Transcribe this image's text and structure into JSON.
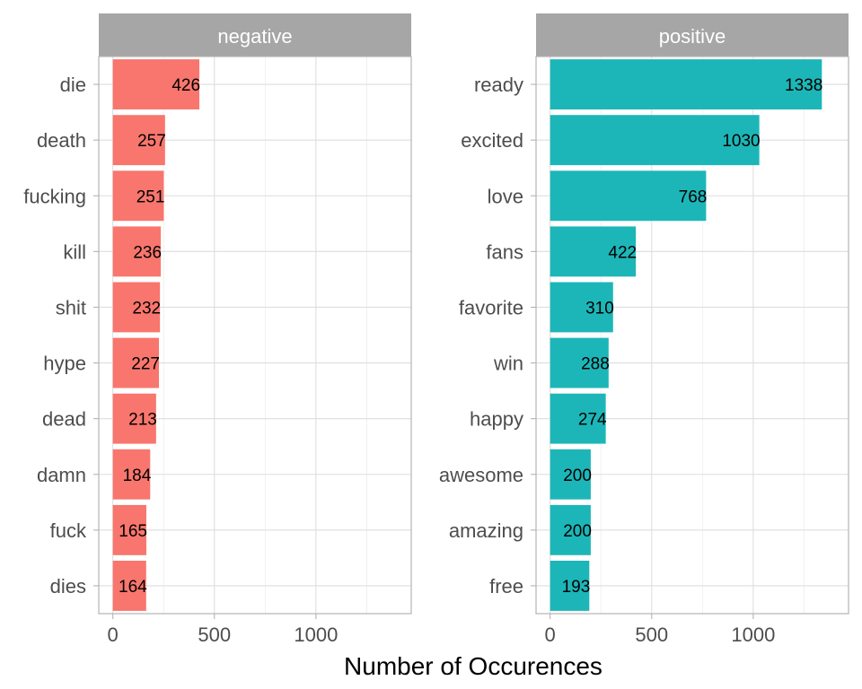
{
  "chart_data": {
    "type": "bar",
    "orientation": "horizontal",
    "xlabel": "Number of Occurences",
    "xlim": [
      0,
      1400
    ],
    "xticks": [
      0,
      500,
      1000
    ],
    "grid": true,
    "facets": [
      {
        "name": "negative",
        "color": "#F8766D",
        "categories": [
          "die",
          "death",
          "fucking",
          "kill",
          "shit",
          "hype",
          "dead",
          "damn",
          "fuck",
          "dies"
        ],
        "values": [
          426,
          257,
          251,
          236,
          232,
          227,
          213,
          184,
          165,
          164
        ]
      },
      {
        "name": "positive",
        "color": "#1DB6B8",
        "categories": [
          "ready",
          "excited",
          "love",
          "fans",
          "favorite",
          "win",
          "happy",
          "awesome",
          "amazing",
          "free"
        ],
        "values": [
          1338,
          1030,
          768,
          422,
          310,
          288,
          274,
          200,
          200,
          193
        ]
      }
    ]
  }
}
